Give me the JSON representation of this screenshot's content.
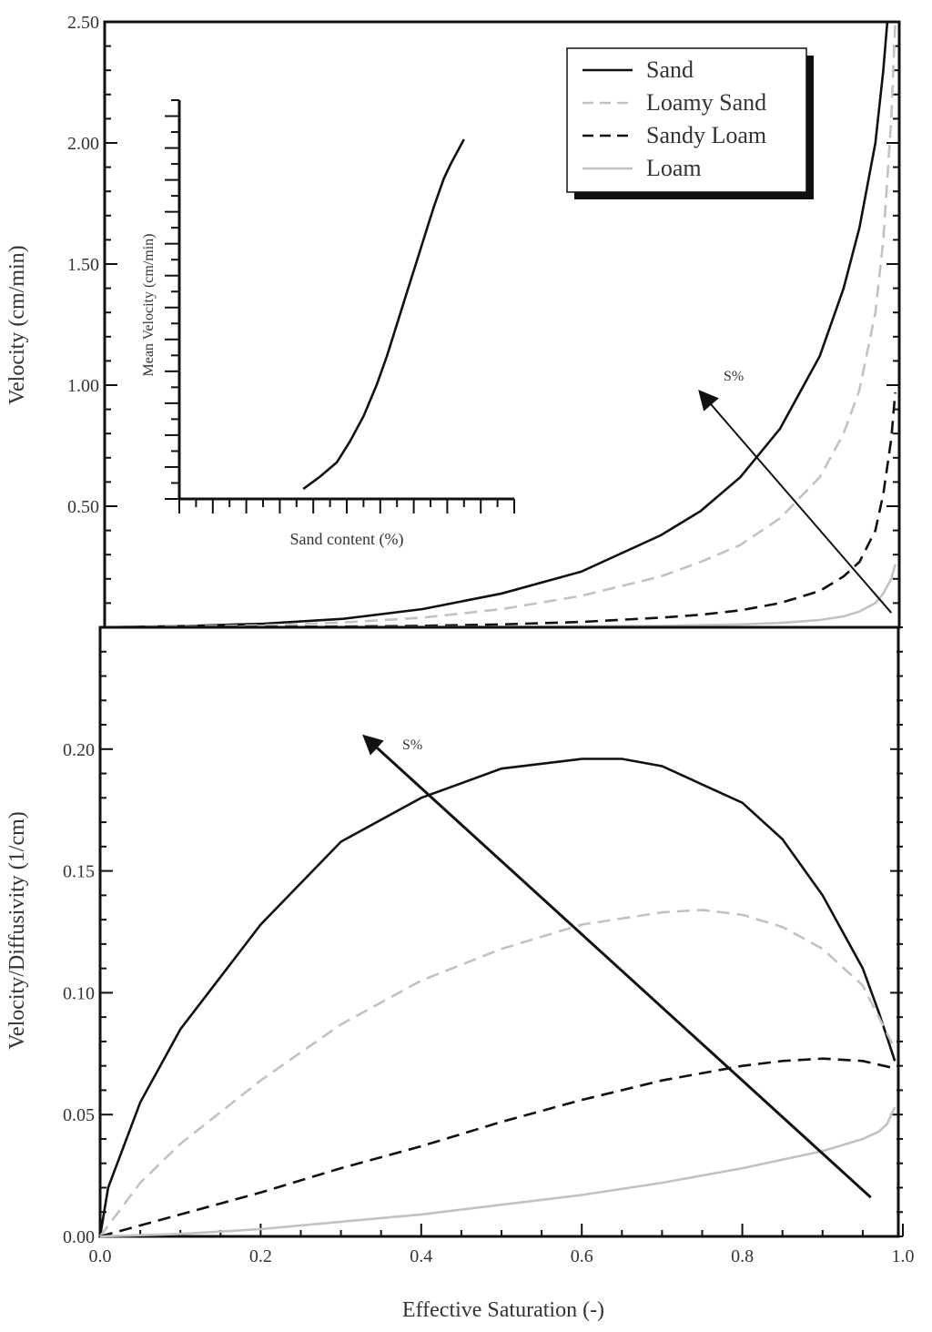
{
  "colors": {
    "Sand": "#111111",
    "Loamy Sand": "#c2c2c2",
    "Sandy Loam": "#111111",
    "Loam": "#c2c2c2",
    "axis": "#111111",
    "arrow": "#111111"
  },
  "chart_data": [
    {
      "id": "top",
      "type": "line",
      "ylabel": "Velocity (cm/min)",
      "ylim": [
        0,
        2.5
      ],
      "xlim": [
        0,
        1
      ],
      "yticks": [
        0.5,
        1.0,
        1.5,
        2.0,
        2.5
      ],
      "ytick_labels": [
        "0.50",
        "1.00",
        "1.50",
        "2.00",
        "2.50"
      ],
      "legend": [
        "Sand",
        "Loamy Sand",
        "Sandy Loam",
        "Loam"
      ],
      "legend_position": "top-right",
      "arrow_label": "S%",
      "arrow": {
        "from": [
          0.99,
          0.06
        ],
        "to": [
          0.75,
          0.97
        ]
      },
      "series": [
        {
          "name": "Sand",
          "style": "solid",
          "x": [
            0.0,
            0.1,
            0.2,
            0.3,
            0.4,
            0.5,
            0.6,
            0.7,
            0.75,
            0.8,
            0.85,
            0.9,
            0.93,
            0.95,
            0.97,
            0.98,
            0.985
          ],
          "y": [
            0.0,
            0.005,
            0.015,
            0.035,
            0.075,
            0.14,
            0.23,
            0.38,
            0.48,
            0.62,
            0.82,
            1.12,
            1.4,
            1.65,
            2.0,
            2.3,
            2.5
          ]
        },
        {
          "name": "Loamy Sand",
          "style": "dashed",
          "x": [
            0.0,
            0.2,
            0.3,
            0.4,
            0.5,
            0.6,
            0.7,
            0.75,
            0.8,
            0.85,
            0.9,
            0.93,
            0.95,
            0.97,
            0.98,
            0.99,
            0.995
          ],
          "y": [
            0.0,
            0.008,
            0.02,
            0.04,
            0.075,
            0.13,
            0.21,
            0.27,
            0.34,
            0.45,
            0.62,
            0.8,
            0.98,
            1.3,
            1.6,
            2.1,
            2.5
          ]
        },
        {
          "name": "Sandy Loam",
          "style": "dashed",
          "x": [
            0.0,
            0.3,
            0.4,
            0.5,
            0.6,
            0.7,
            0.75,
            0.8,
            0.85,
            0.9,
            0.93,
            0.95,
            0.97,
            0.98,
            0.99,
            0.995
          ],
          "y": [
            0.0,
            0.003,
            0.006,
            0.012,
            0.022,
            0.04,
            0.052,
            0.07,
            0.1,
            0.15,
            0.21,
            0.27,
            0.4,
            0.55,
            0.78,
            0.97
          ]
        },
        {
          "name": "Loam",
          "style": "solid",
          "x": [
            0.0,
            0.5,
            0.7,
            0.8,
            0.85,
            0.9,
            0.93,
            0.95,
            0.97,
            0.98,
            0.99,
            0.995
          ],
          "y": [
            0.0,
            0.002,
            0.006,
            0.012,
            0.018,
            0.03,
            0.045,
            0.065,
            0.1,
            0.14,
            0.2,
            0.26
          ]
        }
      ],
      "inset": {
        "type": "line",
        "xlabel": "Sand content (%)",
        "ylabel": "Mean Velocity (cm/min)",
        "xlim": [
          0,
          100
        ],
        "ylim": [
          0,
          100
        ],
        "series": [
          {
            "name": "Mean velocity",
            "x": [
              37,
              42,
              47,
              51,
              55,
              59,
              62,
              65,
              68,
              71,
              74,
              76,
              79,
              81,
              85
            ],
            "y": [
              1.5,
              5,
              9,
              15,
              22,
              31,
              39,
              48,
              57,
              66,
              75,
              81,
              89,
              93,
              100
            ]
          }
        ]
      }
    },
    {
      "id": "bottom",
      "type": "line",
      "xlabel": "Effective Saturation (-)",
      "ylabel": "Velocity/Diffusivity (1/cm)",
      "xlim": [
        0,
        1
      ],
      "ylim": [
        0,
        0.25
      ],
      "xticks": [
        0,
        0.2,
        0.4,
        0.6,
        0.8,
        1.0
      ],
      "xtick_labels": [
        "0.0",
        "0.2",
        "0.4",
        "0.6",
        "0.8",
        "1.0"
      ],
      "yticks": [
        0,
        0.05,
        0.1,
        0.15,
        0.2
      ],
      "ytick_labels": [
        "0.00",
        "0.05",
        "0.10",
        "0.15",
        "0.20"
      ],
      "arrow_label": "S%",
      "arrow": {
        "from": [
          0.96,
          0.016
        ],
        "to": [
          0.33,
          0.205
        ]
      },
      "series": [
        {
          "name": "Sand",
          "style": "solid",
          "x": [
            0.0,
            0.01,
            0.05,
            0.1,
            0.2,
            0.3,
            0.4,
            0.5,
            0.6,
            0.65,
            0.7,
            0.8,
            0.85,
            0.9,
            0.95,
            0.97,
            0.99
          ],
          "y": [
            0.0,
            0.02,
            0.055,
            0.085,
            0.128,
            0.162,
            0.18,
            0.192,
            0.196,
            0.196,
            0.193,
            0.178,
            0.163,
            0.14,
            0.11,
            0.092,
            0.072
          ]
        },
        {
          "name": "Loamy Sand",
          "style": "dashed",
          "x": [
            0.0,
            0.05,
            0.1,
            0.2,
            0.3,
            0.4,
            0.5,
            0.6,
            0.7,
            0.75,
            0.8,
            0.85,
            0.9,
            0.95,
            0.99
          ],
          "y": [
            0.0,
            0.022,
            0.038,
            0.064,
            0.087,
            0.105,
            0.118,
            0.128,
            0.133,
            0.134,
            0.132,
            0.127,
            0.118,
            0.103,
            0.077
          ]
        },
        {
          "name": "Sandy Loam",
          "style": "dashed",
          "x": [
            0.0,
            0.1,
            0.2,
            0.3,
            0.4,
            0.5,
            0.6,
            0.7,
            0.8,
            0.85,
            0.9,
            0.95,
            0.99
          ],
          "y": [
            0.0,
            0.009,
            0.018,
            0.028,
            0.037,
            0.047,
            0.056,
            0.064,
            0.07,
            0.072,
            0.073,
            0.072,
            0.069
          ]
        },
        {
          "name": "Loam",
          "style": "solid",
          "x": [
            0.0,
            0.1,
            0.2,
            0.3,
            0.4,
            0.5,
            0.6,
            0.7,
            0.8,
            0.9,
            0.95,
            0.97,
            0.98,
            0.99
          ],
          "y": [
            0.0,
            0.001,
            0.003,
            0.006,
            0.009,
            0.013,
            0.017,
            0.022,
            0.028,
            0.035,
            0.04,
            0.043,
            0.046,
            0.053
          ]
        }
      ]
    }
  ]
}
